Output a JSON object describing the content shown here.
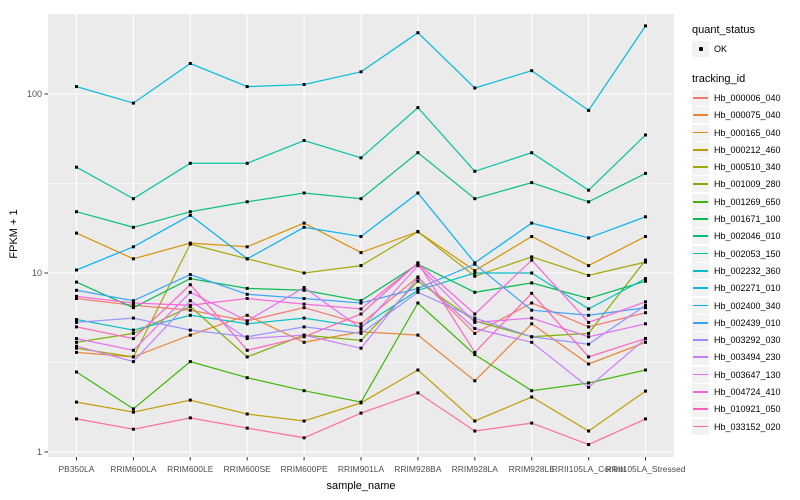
{
  "chart_data": {
    "type": "line",
    "title": "",
    "xlabel": "sample_name",
    "ylabel": "FPKM + 1",
    "y_scale": "log10",
    "y_ticks": [
      1,
      10,
      100
    ],
    "ylim": [
      1,
      280
    ],
    "grid": "white major gridlines at 1/10/100 and each category, white minor gridlines at 10^0.5 and 10^1.5, on gray panel",
    "legend_position": "right",
    "panel_bg": "#EBEBEB",
    "grid_color": "#FFFFFF",
    "axis_text_color": "#4D4D4D",
    "point_color": "#000000",
    "key_bg": "#F2F2F2",
    "categories": [
      "PB350LA",
      "RRIM600LA",
      "RRIM600LE",
      "RRIM600SE",
      "RRIM600PE",
      "RRIM901LA",
      "RRIM928BA",
      "RRIM928LA",
      "RRIM928LE",
      "RRII105LA_Control",
      "RRII105LA_Stressed"
    ],
    "legend": {
      "quant_status_title": "quant_status",
      "quant_status_items": [
        {
          "label": "OK",
          "marker": "point"
        }
      ],
      "tracking_id_title": "tracking_id"
    },
    "series": [
      {
        "name": "Hb_000006_040",
        "color": "#F8766D",
        "values": [
          7.2,
          6.6,
          6.2,
          5.4,
          6.4,
          5.2,
          9.5,
          4.6,
          6.8,
          5.0,
          6.0
        ]
      },
      {
        "name": "Hb_000075_040",
        "color": "#EA8331",
        "values": [
          3.6,
          3.4,
          4.5,
          5.8,
          4.1,
          4.7,
          4.5,
          2.5,
          5.2,
          3.1,
          4.1
        ]
      },
      {
        "name": "Hb_000165_040",
        "color": "#D89000",
        "values": [
          16.7,
          12.0,
          14.7,
          14.0,
          19.0,
          13.0,
          17.0,
          10.3,
          16.0,
          11.0,
          16.0
        ]
      },
      {
        "name": "Hb_000212_460",
        "color": "#C09B00",
        "values": [
          1.9,
          1.67,
          1.95,
          1.63,
          1.49,
          1.88,
          2.87,
          1.49,
          2.03,
          1.31,
          2.19
        ]
      },
      {
        "name": "Hb_000510_340",
        "color": "#A3A500",
        "values": [
          3.8,
          3.4,
          14.5,
          12.0,
          10.0,
          11.0,
          17.0,
          9.6,
          12.3,
          9.7,
          11.5
        ]
      },
      {
        "name": "Hb_001009_280",
        "color": "#7CAE00",
        "values": [
          4.1,
          4.6,
          6.5,
          3.4,
          4.5,
          4.2,
          9.0,
          5.4,
          4.4,
          4.6,
          11.8
        ]
      },
      {
        "name": "Hb_001269_650",
        "color": "#39B600",
        "values": [
          2.8,
          1.74,
          3.2,
          2.6,
          2.2,
          1.9,
          6.8,
          3.5,
          2.2,
          2.43,
          2.87
        ]
      },
      {
        "name": "Hb_001671_100",
        "color": "#00BB4E",
        "values": [
          8.9,
          6.4,
          9.3,
          8.2,
          8.0,
          7.0,
          11.2,
          7.8,
          8.8,
          7.2,
          9.0
        ]
      },
      {
        "name": "Hb_002046_010",
        "color": "#00BF7D",
        "values": [
          22,
          18,
          22,
          25,
          28,
          26,
          47,
          26,
          32,
          25,
          36
        ]
      },
      {
        "name": "Hb_002053_150",
        "color": "#00C1A3",
        "values": [
          39,
          26,
          41,
          41,
          55,
          44,
          84,
          37,
          47,
          29,
          59
        ]
      },
      {
        "name": "Hb_002232_360",
        "color": "#00BFC4",
        "values": [
          5.5,
          4.8,
          5.8,
          5.2,
          5.6,
          5.0,
          8.0,
          10.0,
          10.0,
          6.3,
          9.3
        ]
      },
      {
        "name": "Hb_002271_010",
        "color": "#00BBDA",
        "values": [
          110,
          89,
          148,
          110,
          113,
          133,
          220,
          108,
          135,
          81,
          240
        ]
      },
      {
        "name": "Hb_002400_340",
        "color": "#00B0F6",
        "values": [
          10.4,
          14.0,
          21.0,
          12.0,
          18.0,
          16.0,
          28.0,
          11.4,
          19.0,
          15.7,
          20.6
        ]
      },
      {
        "name": "Hb_002439_010",
        "color": "#35A2FF",
        "values": [
          8.0,
          7.0,
          9.8,
          7.6,
          7.2,
          6.8,
          8.2,
          11.2,
          6.2,
          5.8,
          6.4
        ]
      },
      {
        "name": "Hb_003292_030",
        "color": "#9590FF",
        "values": [
          5.3,
          5.6,
          4.8,
          4.4,
          5.0,
          4.6,
          7.8,
          5.6,
          4.4,
          4.0,
          6.6
        ]
      },
      {
        "name": "Hb_003494_230",
        "color": "#C77CFF",
        "values": [
          3.9,
          3.2,
          7.0,
          4.3,
          4.5,
          3.8,
          9.4,
          4.9,
          4.1,
          2.3,
          4.3
        ]
      },
      {
        "name": "Hb_003647_130",
        "color": "#E76BF3",
        "values": [
          4.3,
          3.7,
          7.8,
          5.4,
          8.3,
          4.9,
          11.0,
          5.3,
          5.6,
          4.4,
          5.2
        ]
      },
      {
        "name": "Hb_004724_410",
        "color": "#FA62DB",
        "values": [
          7.4,
          6.8,
          6.6,
          7.2,
          6.7,
          6.3,
          11.3,
          5.9,
          11.8,
          5.3,
          6.9
        ]
      },
      {
        "name": "Hb_010921_050",
        "color": "#FF62BC",
        "values": [
          5.0,
          4.3,
          8.6,
          3.7,
          4.4,
          5.9,
          11.4,
          3.6,
          7.7,
          3.4,
          4.3
        ]
      },
      {
        "name": "Hb_033152_020",
        "color": "#FF6A98",
        "values": [
          1.53,
          1.34,
          1.55,
          1.36,
          1.2,
          1.65,
          2.14,
          1.31,
          1.45,
          1.1,
          1.53
        ]
      }
    ]
  }
}
